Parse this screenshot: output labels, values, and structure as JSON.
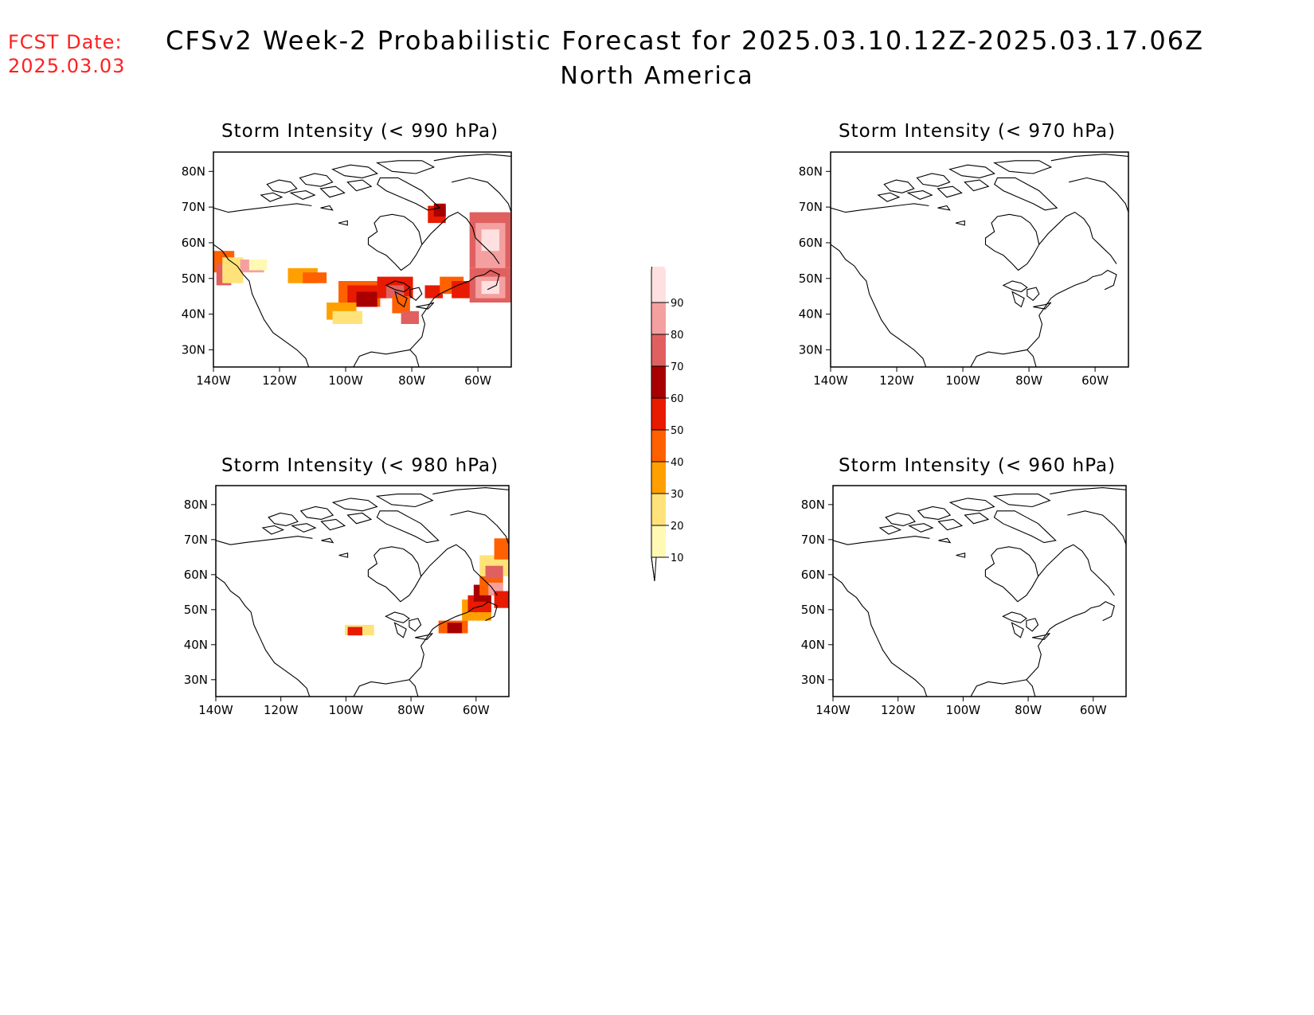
{
  "header": {
    "fcst_label": "FCST Date:",
    "fcst_date": "2025.03.03",
    "title": "CFSv2 Week-2 Probabilistic Forecast for 2025.03.10.12Z-2025.03.17.06Z",
    "subtitle": "North America"
  },
  "colors": {
    "land_line": "#000000",
    "bins": [
      "#fff9b3",
      "#ffe37a",
      "#ffa000",
      "#ff6000",
      "#e81a00",
      "#a80000",
      "#e06060",
      "#f5a0a0",
      "#ffe0e0"
    ]
  },
  "axes": {
    "lat_ticks": [
      "80N",
      "70N",
      "60N",
      "50N",
      "40N",
      "30N"
    ],
    "lon_ticks": [
      "140W",
      "120W",
      "100W",
      "80W",
      "60W"
    ]
  },
  "panels": [
    {
      "id": "p990",
      "title": "Storm Intensity (< 990 hPa)",
      "threshold": "990 hPa",
      "has_signal": true
    },
    {
      "id": "p970",
      "title": "Storm Intensity (< 970 hPa)",
      "threshold": "970 hPa",
      "has_signal": false
    },
    {
      "id": "p980",
      "title": "Storm Intensity (< 980 hPa)",
      "threshold": "980 hPa",
      "has_signal": true
    },
    {
      "id": "p960",
      "title": "Storm Intensity (< 960 hPa)",
      "threshold": "960 hPa",
      "has_signal": false
    }
  ],
  "legend": {
    "labels": [
      "10",
      "20",
      "30",
      "40",
      "50",
      "60",
      "70",
      "80",
      "90"
    ]
  }
}
